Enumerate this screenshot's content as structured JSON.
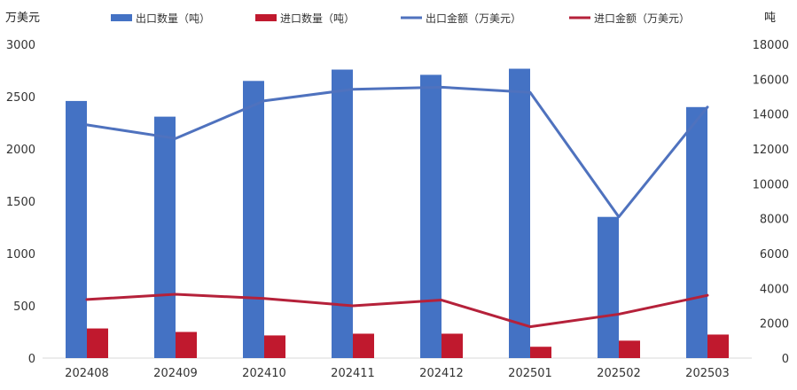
{
  "chart_data": {
    "type": "bar",
    "categories": [
      "202408",
      "202409",
      "202410",
      "202411",
      "202412",
      "202501",
      "202502",
      "202503"
    ],
    "left_axis": {
      "label": "万美元",
      "range": [
        0,
        3000
      ],
      "ticks": [
        0,
        500,
        1000,
        1500,
        2000,
        2500,
        3000
      ]
    },
    "right_axis": {
      "label": "吨",
      "range": [
        0,
        18000
      ],
      "ticks": [
        0,
        2000,
        4000,
        6000,
        8000,
        10000,
        12000,
        14000,
        16000,
        18000
      ]
    },
    "series": [
      {
        "name": "出口数量（吨）",
        "kind": "bar",
        "axis": "right",
        "color": "#4472C4",
        "values": [
          14750,
          13850,
          15900,
          16550,
          16250,
          16600,
          8100,
          14400
        ]
      },
      {
        "name": "进口数量（吨）",
        "kind": "bar",
        "axis": "right",
        "color": "#C0192E",
        "values": [
          1700,
          1500,
          1300,
          1400,
          1400,
          650,
          1000,
          1350
        ]
      },
      {
        "name": "出口金额（万美元）",
        "kind": "line",
        "axis": "left",
        "color": "#4F72BE",
        "values": [
          2230,
          2100,
          2460,
          2570,
          2590,
          2540,
          1350,
          2400
        ]
      },
      {
        "name": "进口金额（万美元）",
        "kind": "line",
        "axis": "left",
        "color": "#B5213A",
        "values": [
          560,
          610,
          570,
          500,
          555,
          300,
          420,
          600
        ]
      }
    ],
    "grid": false,
    "legend_position": "top"
  }
}
